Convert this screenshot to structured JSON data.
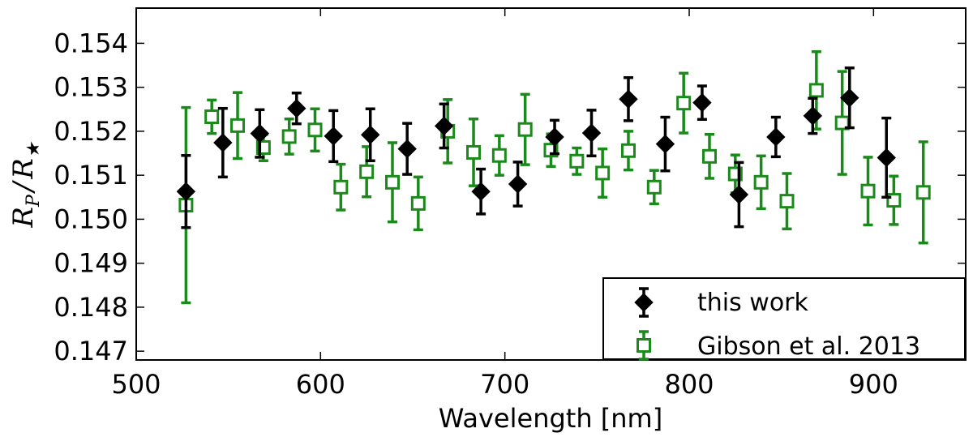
{
  "chart_data": {
    "type": "scatter",
    "title": "",
    "xlabel": "Wavelength [nm]",
    "ylabel": "R_P / R_★",
    "ylabel_parts": {
      "main_left": "R",
      "sub_left": "P",
      "slash": "/",
      "main_right": "R",
      "sub_right": "★"
    },
    "xlim": [
      500,
      950
    ],
    "ylim": [
      0.1468,
      0.1548
    ],
    "xticks": [
      500,
      600,
      700,
      800,
      900
    ],
    "xtick_labels": [
      "500",
      "600",
      "700",
      "800",
      "900"
    ],
    "yticks": [
      0.147,
      0.148,
      0.149,
      0.15,
      0.151,
      0.152,
      0.153,
      0.154
    ],
    "ytick_labels": [
      "0.147",
      "0.148",
      "0.149",
      "0.150",
      "0.151",
      "0.152",
      "0.153",
      "0.154"
    ],
    "legend_position": "bottom-right",
    "series": [
      {
        "name": "this work",
        "marker": "diamond",
        "color": "#000000",
        "x": [
          527,
          547,
          567,
          587,
          607,
          627,
          647,
          667,
          687,
          707,
          727,
          747,
          767,
          787,
          807,
          827,
          847,
          867,
          887,
          907
        ],
        "y": [
          0.15063,
          0.15174,
          0.15195,
          0.15252,
          0.15189,
          0.15192,
          0.1516,
          0.15212,
          0.15063,
          0.1508,
          0.15187,
          0.15196,
          0.15273,
          0.15171,
          0.15265,
          0.15056,
          0.15187,
          0.15235,
          0.15276,
          0.1514
        ],
        "err": [
          0.00082,
          0.00078,
          0.00054,
          0.00035,
          0.00058,
          0.00059,
          0.00058,
          0.0005,
          0.00051,
          0.0005,
          0.00038,
          0.00052,
          0.00049,
          0.00061,
          0.00038,
          0.00073,
          0.00045,
          0.0004,
          0.00068,
          0.0009
        ]
      },
      {
        "name": "Gibson et al. 2013",
        "marker": "square",
        "color": "#1a8a1a",
        "x": [
          527,
          541,
          555,
          569,
          583,
          597,
          611,
          625,
          639,
          653,
          669,
          683,
          697,
          711,
          725,
          739,
          753,
          767,
          781,
          797,
          811,
          825,
          839,
          853,
          869,
          883,
          897,
          911,
          927
        ],
        "y": [
          0.15032,
          0.15233,
          0.15213,
          0.15163,
          0.15188,
          0.15203,
          0.15073,
          0.15108,
          0.15084,
          0.15036,
          0.152,
          0.15152,
          0.15145,
          0.15204,
          0.15157,
          0.15132,
          0.15105,
          0.15156,
          0.15073,
          0.15264,
          0.15143,
          0.15103,
          0.15084,
          0.15041,
          0.15293,
          0.15219,
          0.15064,
          0.15043,
          0.15061
        ],
        "err": [
          0.00222,
          0.00038,
          0.00075,
          0.0003,
          0.0004,
          0.00048,
          0.00052,
          0.00057,
          0.0009,
          0.0006,
          0.00072,
          0.00076,
          0.00045,
          0.0008,
          0.00037,
          0.0003,
          0.00055,
          0.00044,
          0.00038,
          0.00068,
          0.0005,
          0.00043,
          0.0006,
          0.00063,
          0.00088,
          0.00117,
          0.00077,
          0.00055,
          0.00115
        ]
      }
    ]
  }
}
